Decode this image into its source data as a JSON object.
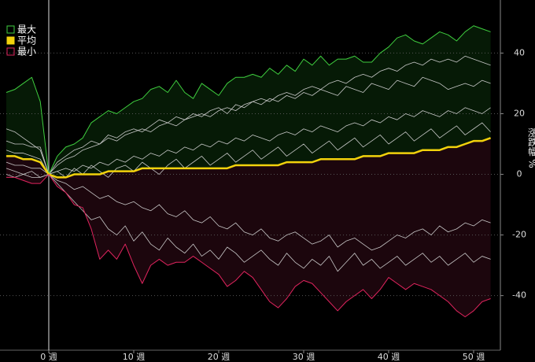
{
  "chart_data": {
    "type": "line",
    "x": [
      -5,
      -4,
      -3,
      -2,
      -1,
      0,
      1,
      2,
      3,
      4,
      5,
      6,
      7,
      8,
      9,
      10,
      11,
      12,
      13,
      14,
      15,
      16,
      17,
      18,
      19,
      20,
      21,
      22,
      23,
      24,
      25,
      26,
      27,
      28,
      29,
      30,
      31,
      32,
      33,
      34,
      35,
      36,
      37,
      38,
      39,
      40,
      41,
      42,
      43,
      44,
      45,
      46,
      47,
      48,
      49,
      50,
      51,
      52
    ],
    "xlim": [
      -5.74,
      53.15
    ],
    "xticks": [
      {
        "value": 0,
        "label": "0 週"
      },
      {
        "value": 10,
        "label": "10 週"
      },
      {
        "value": 20,
        "label": "20 週"
      },
      {
        "value": 30,
        "label": "30 週"
      },
      {
        "value": 40,
        "label": "40 週"
      },
      {
        "value": 50,
        "label": "50 週"
      }
    ],
    "ylim": [
      -58,
      57.5
    ],
    "yticks": [
      -40,
      -20,
      0,
      20,
      40
    ],
    "y_label": "漲跌幅 %",
    "grid": true,
    "legend": "top-left",
    "series": [
      {
        "name": "最大",
        "color": "#3fcf3f",
        "values": [
          27,
          28,
          30,
          32,
          24,
          0,
          6,
          9,
          10,
          12,
          17,
          19,
          21,
          20,
          22,
          24,
          25,
          28,
          29,
          27,
          31,
          27,
          25,
          30,
          28,
          26,
          30,
          32,
          32,
          33,
          32,
          35,
          33,
          36,
          34,
          38,
          36,
          39,
          36,
          38,
          38,
          39,
          37,
          37,
          40,
          42,
          45,
          46,
          44,
          43,
          45,
          47,
          46,
          44,
          47,
          49,
          48,
          47
        ]
      },
      {
        "name": "平均",
        "color": "#f2d20c",
        "values": [
          6,
          6,
          5,
          5,
          4,
          0,
          -1,
          -1,
          0,
          0,
          0,
          0,
          1,
          1,
          1,
          1,
          2,
          2,
          2,
          2,
          2,
          2,
          2,
          2,
          2,
          2,
          2,
          3,
          3,
          3,
          3,
          3,
          3,
          4,
          4,
          4,
          4,
          5,
          5,
          5,
          5,
          5,
          6,
          6,
          6,
          7,
          7,
          7,
          7,
          8,
          8,
          8,
          9,
          9,
          10,
          11,
          11,
          12
        ]
      },
      {
        "name": "最小",
        "color": "#e0245e",
        "values": [
          -1,
          -1,
          -2,
          -3,
          -3,
          0,
          -4,
          -6,
          -10,
          -11,
          -18,
          -28,
          -25,
          -28,
          -23,
          -30,
          -36,
          -30,
          -28,
          -30,
          -29,
          -29,
          -27,
          -29,
          -31,
          -33,
          -37,
          -35,
          -32,
          -34,
          -38,
          -42,
          -44,
          -41,
          -37,
          -35,
          -36,
          -39,
          -42,
          -45,
          -42,
          -40,
          -38,
          -41,
          -38,
          -34,
          -36,
          -38,
          -36,
          -37,
          -38,
          -40,
          -42,
          -45,
          -47,
          -45,
          -42,
          -41
        ]
      },
      {
        "color": "#c8c8c8",
        "values": [
          15,
          14,
          12,
          10,
          8,
          0,
          3,
          5,
          6,
          8,
          9,
          10,
          12,
          11,
          13,
          14,
          15,
          14,
          16,
          17,
          16,
          18,
          19,
          20,
          19,
          21,
          22,
          21,
          23,
          24,
          25,
          24,
          26,
          27,
          26,
          28,
          29,
          28,
          30,
          31,
          30,
          32,
          33,
          32,
          34,
          35,
          34,
          36,
          37,
          36,
          38,
          37,
          38,
          37,
          39,
          38,
          37,
          36
        ]
      },
      {
        "color": "#c8c8c8",
        "values": [
          8,
          7,
          7,
          6,
          5,
          0,
          1,
          2,
          1,
          3,
          2,
          4,
          3,
          5,
          4,
          6,
          5,
          7,
          6,
          8,
          7,
          9,
          8,
          10,
          9,
          11,
          10,
          12,
          11,
          13,
          12,
          11,
          13,
          14,
          13,
          15,
          14,
          16,
          15,
          14,
          16,
          17,
          16,
          18,
          17,
          19,
          18,
          20,
          19,
          21,
          20,
          19,
          21,
          20,
          22,
          21,
          20,
          22
        ]
      },
      {
        "color": "#c8c8c8",
        "values": [
          2,
          1,
          0,
          -1,
          -1,
          0,
          -2,
          -3,
          -5,
          -4,
          -6,
          -8,
          -7,
          -9,
          -10,
          -9,
          -11,
          -12,
          -10,
          -13,
          -14,
          -12,
          -15,
          -16,
          -14,
          -17,
          -18,
          -16,
          -19,
          -20,
          -18,
          -21,
          -22,
          -20,
          -19,
          -21,
          -23,
          -22,
          -20,
          -24,
          -22,
          -21,
          -23,
          -25,
          -24,
          -22,
          -20,
          -21,
          -19,
          -18,
          -20,
          -17,
          -19,
          -18,
          -16,
          -17,
          -15,
          -16
        ]
      },
      {
        "color": "#c8c8c8",
        "values": [
          4,
          3,
          3,
          2,
          2,
          0,
          1,
          -1,
          2,
          0,
          3,
          1,
          -1,
          2,
          3,
          1,
          4,
          2,
          0,
          3,
          5,
          2,
          4,
          6,
          3,
          5,
          7,
          4,
          6,
          8,
          5,
          7,
          9,
          6,
          8,
          10,
          7,
          9,
          11,
          8,
          10,
          12,
          9,
          11,
          13,
          10,
          12,
          14,
          11,
          13,
          15,
          12,
          14,
          16,
          13,
          15,
          17,
          14
        ]
      },
      {
        "color": "#c8c8c8",
        "values": [
          0,
          -1,
          0,
          1,
          -1,
          0,
          -3,
          -6,
          -9,
          -12,
          -15,
          -14,
          -18,
          -20,
          -17,
          -22,
          -19,
          -23,
          -25,
          -21,
          -24,
          -26,
          -23,
          -27,
          -25,
          -28,
          -24,
          -26,
          -29,
          -27,
          -25,
          -28,
          -30,
          -26,
          -29,
          -31,
          -28,
          -30,
          -27,
          -32,
          -29,
          -26,
          -30,
          -28,
          -31,
          -29,
          -27,
          -30,
          -28,
          -26,
          -29,
          -27,
          -30,
          -28,
          -26,
          -29,
          -27,
          -28
        ]
      },
      {
        "color": "#c8c8c8",
        "values": [
          11,
          10,
          10,
          9,
          9,
          0,
          4,
          6,
          8,
          9,
          11,
          10,
          13,
          12,
          14,
          15,
          14,
          16,
          18,
          17,
          19,
          18,
          20,
          19,
          21,
          22,
          20,
          23,
          22,
          24,
          23,
          25,
          24,
          26,
          25,
          27,
          26,
          28,
          27,
          26,
          29,
          28,
          27,
          30,
          29,
          28,
          31,
          30,
          29,
          32,
          31,
          30,
          28,
          29,
          30,
          29,
          31,
          30
        ]
      }
    ]
  }
}
